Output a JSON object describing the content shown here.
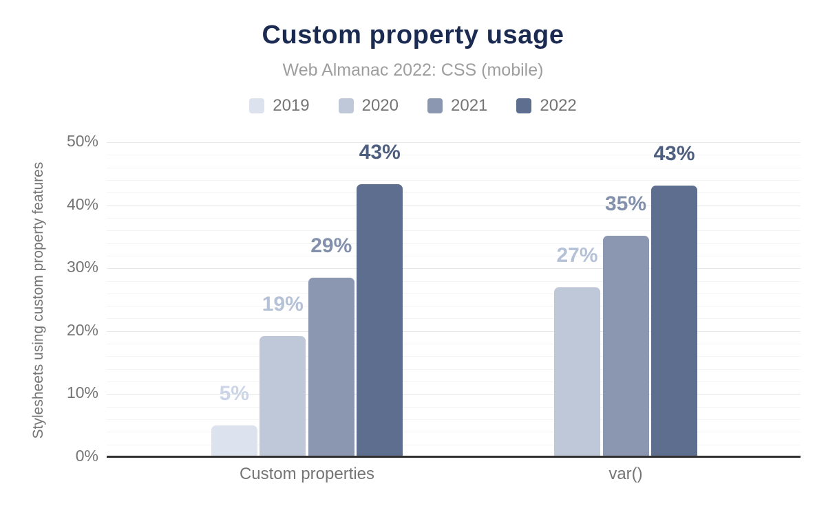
{
  "header": {
    "title": "Custom property usage",
    "subtitle": "Web Almanac 2022: CSS (mobile)"
  },
  "legend": {
    "position": "top",
    "items": [
      {
        "label": "2019",
        "color": "#dce2ee"
      },
      {
        "label": "2020",
        "color": "#bfc8d8"
      },
      {
        "label": "2021",
        "color": "#8b97b1"
      },
      {
        "label": "2022",
        "color": "#5d6e8e"
      }
    ]
  },
  "chart_data": {
    "type": "bar",
    "title": "Custom property usage",
    "subtitle": "Web Almanac 2022: CSS (mobile)",
    "xlabel": "",
    "ylabel": "Stylesheets using custom property features",
    "ylim": [
      0,
      50
    ],
    "y_ticks": [
      "0%",
      "10%",
      "20%",
      "30%",
      "40%",
      "50%"
    ],
    "grid": "horizontal, major every 10%, minor every 2%",
    "legend_position": "top",
    "categories": [
      "Custom properties",
      "var()"
    ],
    "series": [
      {
        "name": "2019",
        "color": "#dce2ee",
        "label_color": "#ccd5e8",
        "values": [
          5,
          null
        ],
        "labels": [
          "5%",
          null
        ]
      },
      {
        "name": "2020",
        "color": "#bfc8d8",
        "label_color": "#b5c1d7",
        "values": [
          19.2,
          27
        ],
        "labels": [
          "19%",
          "27%"
        ]
      },
      {
        "name": "2021",
        "color": "#8b97b1",
        "label_color": "#8290ac",
        "values": [
          28.5,
          35.2
        ],
        "labels": [
          "29%",
          "35%"
        ]
      },
      {
        "name": "2022",
        "color": "#5d6e8e",
        "label_color": "#4d5e7e",
        "values": [
          43.3,
          43.1
        ],
        "labels": [
          "43%",
          "43%"
        ]
      }
    ]
  }
}
